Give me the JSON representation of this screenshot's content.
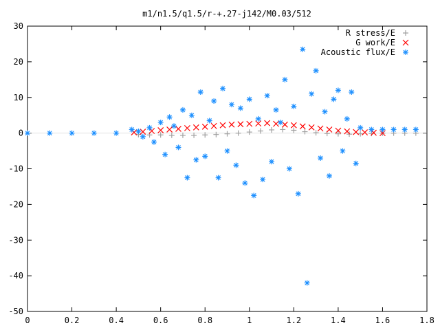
{
  "chart_data": {
    "type": "scatter",
    "title": "m1/n1.5/q1.5/r-+.27-j142/M0.03/512",
    "xlabel": "",
    "ylabel": "",
    "xlim": [
      0,
      1.8
    ],
    "ylim": [
      -50,
      30
    ],
    "x_ticks": [
      0,
      0.2,
      0.4,
      0.6,
      0.8,
      1,
      1.2,
      1.4,
      1.6,
      1.8
    ],
    "x_tick_labels": [
      "0",
      "0.2",
      "0.4",
      "0.6",
      "0.8",
      "1",
      "1.2",
      "1.4",
      "1.6",
      "1.8"
    ],
    "y_ticks": [
      -50,
      -40,
      -30,
      -20,
      -10,
      0,
      10,
      20,
      30
    ],
    "y_tick_labels": [
      "-50",
      "-40",
      "-30",
      "-20",
      "-10",
      "0",
      "10",
      "20",
      "30"
    ],
    "legend": "top-right",
    "series": [
      {
        "name": "R stress/E",
        "color": "#a0a0a0",
        "marker": "plus",
        "x": [
          0.5,
          0.55,
          0.6,
          0.65,
          0.7,
          0.75,
          0.8,
          0.85,
          0.9,
          0.95,
          1.0,
          1.05,
          1.1,
          1.15,
          1.2,
          1.25,
          1.3,
          1.35,
          1.4,
          1.45,
          1.5,
          1.55,
          1.6,
          1.65,
          1.7,
          1.75
        ],
        "y": [
          -0.4,
          -0.5,
          -0.5,
          -0.6,
          -0.6,
          -0.6,
          -0.5,
          -0.4,
          -0.2,
          0.0,
          0.3,
          0.6,
          0.9,
          1.0,
          0.8,
          0.4,
          0.1,
          -0.1,
          -0.2,
          -0.3,
          -0.2,
          -0.1,
          0.0,
          0.0,
          0.0,
          0.0
        ]
      },
      {
        "name": "G work/E",
        "color": "#ff0000",
        "marker": "x",
        "x": [
          0.48,
          0.52,
          0.56,
          0.6,
          0.64,
          0.68,
          0.72,
          0.76,
          0.8,
          0.84,
          0.88,
          0.92,
          0.96,
          1.0,
          1.04,
          1.08,
          1.12,
          1.16,
          1.2,
          1.24,
          1.28,
          1.32,
          1.36,
          1.4,
          1.44,
          1.48,
          1.52,
          1.56,
          1.6
        ],
        "y": [
          0.2,
          0.4,
          0.6,
          0.8,
          1.0,
          1.2,
          1.4,
          1.6,
          1.8,
          2.0,
          2.2,
          2.4,
          2.5,
          2.6,
          2.7,
          2.8,
          2.6,
          2.4,
          2.2,
          1.9,
          1.6,
          1.3,
          1.0,
          0.7,
          0.5,
          0.3,
          0.2,
          0.1,
          0.0
        ]
      },
      {
        "name": "Acoustic flux/E",
        "color": "#1e90ff",
        "marker": "star",
        "x": [
          0.0,
          0.1,
          0.2,
          0.3,
          0.4,
          0.47,
          0.5,
          0.52,
          0.55,
          0.57,
          0.6,
          0.62,
          0.64,
          0.66,
          0.68,
          0.7,
          0.72,
          0.74,
          0.76,
          0.78,
          0.8,
          0.82,
          0.84,
          0.86,
          0.88,
          0.9,
          0.92,
          0.94,
          0.96,
          0.98,
          1.0,
          1.02,
          1.04,
          1.06,
          1.08,
          1.1,
          1.12,
          1.14,
          1.16,
          1.18,
          1.2,
          1.22,
          1.24,
          1.26,
          1.28,
          1.3,
          1.32,
          1.34,
          1.36,
          1.38,
          1.4,
          1.42,
          1.44,
          1.46,
          1.48,
          1.5,
          1.55,
          1.6,
          1.65,
          1.7,
          1.75
        ],
        "y": [
          0.0,
          0.0,
          0.0,
          0.0,
          0.0,
          1.0,
          0.5,
          -1.0,
          1.5,
          -2.5,
          3.0,
          -6.0,
          4.5,
          2.0,
          -4.0,
          6.5,
          -12.5,
          5.0,
          -7.5,
          11.5,
          -6.5,
          3.5,
          9.0,
          -12.5,
          12.5,
          -5.0,
          8.0,
          -9.0,
          7.0,
          -14.0,
          9.5,
          -17.5,
          4.0,
          -13.0,
          10.5,
          -8.0,
          6.5,
          3.0,
          15.0,
          -10.0,
          7.5,
          -17.0,
          23.5,
          -42.0,
          11.0,
          17.5,
          -7.0,
          6.0,
          -12.0,
          9.5,
          12.0,
          -5.0,
          4.0,
          11.5,
          -8.5,
          1.5,
          1.0,
          1.0,
          1.0,
          1.0,
          1.0
        ]
      }
    ]
  }
}
